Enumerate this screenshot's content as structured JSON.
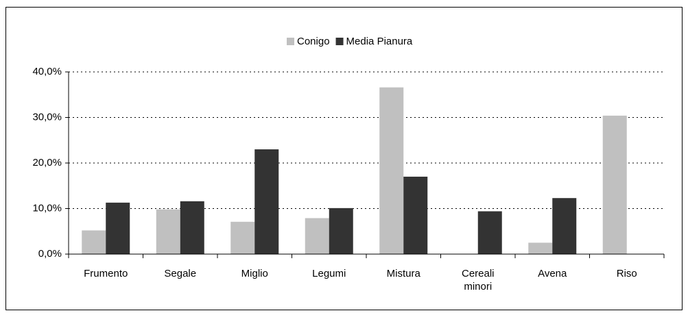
{
  "chart_data": {
    "type": "bar",
    "categories": [
      "Frumento",
      "Segale",
      "Miglio",
      "Legumi",
      "Mistura",
      "Cereali minori",
      "Avena",
      "Riso"
    ],
    "series": [
      {
        "name": "Conigo",
        "color": "#c0c0c0",
        "values": [
          5.2,
          9.8,
          7.1,
          7.9,
          36.6,
          0,
          2.5,
          30.4
        ]
      },
      {
        "name": "Media Pianura",
        "color": "#333333",
        "values": [
          11.3,
          11.6,
          23.0,
          10.1,
          17.0,
          9.4,
          12.3,
          0
        ]
      }
    ],
    "ylim": [
      0,
      40
    ],
    "yticks": [
      {
        "value": 0,
        "label": "0,0%"
      },
      {
        "value": 10,
        "label": "10,0%"
      },
      {
        "value": 20,
        "label": "20,0%"
      },
      {
        "value": 30,
        "label": "30,0%"
      },
      {
        "value": 40,
        "label": "40,0%"
      }
    ],
    "grid": true,
    "legend": "top"
  }
}
